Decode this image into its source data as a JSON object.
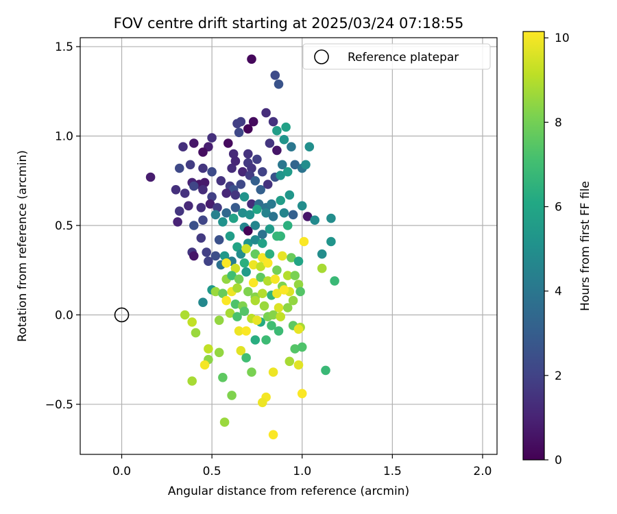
{
  "chart_data": {
    "type": "scatter",
    "title": "FOV centre drift starting at 2025/03/24 07:18:55",
    "xlabel": "Angular distance from reference (arcmin)",
    "ylabel": "Rotation from reference (arcmin)",
    "xlim": [
      -0.23,
      2.08
    ],
    "ylim": [
      -0.78,
      1.55
    ],
    "xticks": [
      "0.0",
      "0.5",
      "1.0",
      "1.5",
      "2.0"
    ],
    "xtick_values": [
      0,
      0.5,
      1.0,
      1.5,
      2.0
    ],
    "yticks": [
      "−0.5",
      "0.0",
      "0.5",
      "1.0",
      "1.5"
    ],
    "ytick_values": [
      -0.5,
      0,
      0.5,
      1.0,
      1.5
    ],
    "grid": true,
    "legend": {
      "position": "top-right",
      "label": "Reference platepar"
    },
    "reference_point": {
      "x": 0.0,
      "y": 0.0
    },
    "colorbar": {
      "label": "Hours from first FF file",
      "colormap": "viridis",
      "range": [
        0,
        10.15
      ],
      "ticks": [
        "0",
        "2",
        "4",
        "6",
        "8",
        "10"
      ],
      "tick_values": [
        0,
        2,
        4,
        6,
        8,
        10
      ]
    },
    "points": [
      [
        0.72,
        1.43,
        0.2
      ],
      [
        0.85,
        1.34,
        2.3
      ],
      [
        0.87,
        1.29,
        2.6
      ],
      [
        0.8,
        1.13,
        1.3
      ],
      [
        0.84,
        1.08,
        1.5
      ],
      [
        0.66,
        1.08,
        1.8
      ],
      [
        0.64,
        1.07,
        1.9
      ],
      [
        0.73,
        1.08,
        0.3
      ],
      [
        0.7,
        1.04,
        0.1
      ],
      [
        0.65,
        1.02,
        2.2
      ],
      [
        0.5,
        0.99,
        1.4
      ],
      [
        0.59,
        0.96,
        0.3
      ],
      [
        0.4,
        0.96,
        0.6
      ],
      [
        0.34,
        0.94,
        1.4
      ],
      [
        0.48,
        0.94,
        0.9
      ],
      [
        0.45,
        0.91,
        0.4
      ],
      [
        0.62,
        0.9,
        1.2
      ],
      [
        0.7,
        0.9,
        1.5
      ],
      [
        0.75,
        0.87,
        1.9
      ],
      [
        0.82,
        0.96,
        1.6
      ],
      [
        0.86,
        0.92,
        0.6
      ],
      [
        0.94,
        0.94,
        4.0
      ],
      [
        1.04,
        0.94,
        5.0
      ],
      [
        0.9,
        0.98,
        5.2
      ],
      [
        0.91,
        1.05,
        5.8
      ],
      [
        0.86,
        1.03,
        5.6
      ],
      [
        0.89,
        0.84,
        4.0
      ],
      [
        0.96,
        0.84,
        3.3
      ],
      [
        1.0,
        0.82,
        3.9
      ],
      [
        1.02,
        0.84,
        4.9
      ],
      [
        0.32,
        0.82,
        2.2
      ],
      [
        0.38,
        0.84,
        1.8
      ],
      [
        0.45,
        0.82,
        1.6
      ],
      [
        0.5,
        0.8,
        2.3
      ],
      [
        0.61,
        0.82,
        1.3
      ],
      [
        0.63,
        0.86,
        1.1
      ],
      [
        0.7,
        0.85,
        1.7
      ],
      [
        0.72,
        0.82,
        1.6
      ],
      [
        0.78,
        0.8,
        2.0
      ],
      [
        0.16,
        0.77,
        0.8
      ],
      [
        0.39,
        0.74,
        1.0
      ],
      [
        0.43,
        0.73,
        0.6
      ],
      [
        0.46,
        0.74,
        0.7
      ],
      [
        0.55,
        0.75,
        1.5
      ],
      [
        0.6,
        0.72,
        1.8
      ],
      [
        0.62,
        0.7,
        2.5
      ],
      [
        0.66,
        0.73,
        2.2
      ],
      [
        0.67,
        0.8,
        1.1
      ],
      [
        0.71,
        0.78,
        1.8
      ],
      [
        0.74,
        0.75,
        3.1
      ],
      [
        0.77,
        0.7,
        3.1
      ],
      [
        0.81,
        0.73,
        1.5
      ],
      [
        0.85,
        0.77,
        2.6
      ],
      [
        0.88,
        0.78,
        5.2
      ],
      [
        0.92,
        0.8,
        5.5
      ],
      [
        0.3,
        0.7,
        1.4
      ],
      [
        0.35,
        0.68,
        1.5
      ],
      [
        0.4,
        0.72,
        2.1
      ],
      [
        0.45,
        0.7,
        1.3
      ],
      [
        0.5,
        0.66,
        1.9
      ],
      [
        0.58,
        0.68,
        1.1
      ],
      [
        0.63,
        0.67,
        1.6
      ],
      [
        0.68,
        0.66,
        5.2
      ],
      [
        0.72,
        0.62,
        1.3
      ],
      [
        0.76,
        0.62,
        3.6
      ],
      [
        0.8,
        0.6,
        3.9
      ],
      [
        0.83,
        0.62,
        4.1
      ],
      [
        0.88,
        0.64,
        5.6
      ],
      [
        0.93,
        0.67,
        5.3
      ],
      [
        0.32,
        0.58,
        1.6
      ],
      [
        0.37,
        0.61,
        1.2
      ],
      [
        0.44,
        0.6,
        1.4
      ],
      [
        0.49,
        0.62,
        0.8
      ],
      [
        0.53,
        0.6,
        1.7
      ],
      [
        0.58,
        0.57,
        3.4
      ],
      [
        0.63,
        0.6,
        2.9
      ],
      [
        0.67,
        0.57,
        4.9
      ],
      [
        0.71,
        0.56,
        5.1
      ],
      [
        0.75,
        0.59,
        6.0
      ],
      [
        0.8,
        0.57,
        4.5
      ],
      [
        0.84,
        0.55,
        3.9
      ],
      [
        0.9,
        0.57,
        4.6
      ],
      [
        0.95,
        0.56,
        3.1
      ],
      [
        1.0,
        0.61,
        4.9
      ],
      [
        1.03,
        0.55,
        0.6
      ],
      [
        1.07,
        0.53,
        4.8
      ],
      [
        1.16,
        0.54,
        4.9
      ],
      [
        0.31,
        0.52,
        1.0
      ],
      [
        0.4,
        0.5,
        2.5
      ],
      [
        0.45,
        0.53,
        2.1
      ],
      [
        0.52,
        0.56,
        4.4
      ],
      [
        0.56,
        0.52,
        5.1
      ],
      [
        0.62,
        0.54,
        5.8
      ],
      [
        0.68,
        0.49,
        4.6
      ],
      [
        0.7,
        0.47,
        0.1
      ],
      [
        0.74,
        0.5,
        4.6
      ],
      [
        0.78,
        0.45,
        3.8
      ],
      [
        0.82,
        0.48,
        5.5
      ],
      [
        0.88,
        0.44,
        6.6
      ],
      [
        0.92,
        0.5,
        6.4
      ],
      [
        0.44,
        0.43,
        1.7
      ],
      [
        0.54,
        0.42,
        2.5
      ],
      [
        0.6,
        0.44,
        5.6
      ],
      [
        0.64,
        0.38,
        5.9
      ],
      [
        0.7,
        0.4,
        5.2
      ],
      [
        0.74,
        0.42,
        4.8
      ],
      [
        0.78,
        0.4,
        5.8
      ],
      [
        0.86,
        0.44,
        6.7
      ],
      [
        1.01,
        0.41,
        10.1
      ],
      [
        1.16,
        0.41,
        5.2
      ],
      [
        0.39,
        0.35,
        1.6
      ],
      [
        0.4,
        0.33,
        0.6
      ],
      [
        0.47,
        0.35,
        1.9
      ],
      [
        0.52,
        0.33,
        2.4
      ],
      [
        0.57,
        0.33,
        5.4
      ],
      [
        0.61,
        0.3,
        4.3
      ],
      [
        0.66,
        0.34,
        4.9
      ],
      [
        0.69,
        0.37,
        9.4
      ],
      [
        0.74,
        0.34,
        7.7
      ],
      [
        0.78,
        0.32,
        10.0
      ],
      [
        0.82,
        0.34,
        6.4
      ],
      [
        0.89,
        0.33,
        9.8
      ],
      [
        0.94,
        0.32,
        7.8
      ],
      [
        0.98,
        0.3,
        5.9
      ],
      [
        1.11,
        0.34,
        4.9
      ],
      [
        0.48,
        0.3,
        2.0
      ],
      [
        0.55,
        0.28,
        3.8
      ],
      [
        0.58,
        0.29,
        10.1
      ],
      [
        0.63,
        0.26,
        9.4
      ],
      [
        0.68,
        0.29,
        6.4
      ],
      [
        0.73,
        0.28,
        9.9
      ],
      [
        0.77,
        0.27,
        9.2
      ],
      [
        0.81,
        0.29,
        10.1
      ],
      [
        0.86,
        0.25,
        8.0
      ],
      [
        0.92,
        0.22,
        9.0
      ],
      [
        0.96,
        0.22,
        8.1
      ],
      [
        1.11,
        0.26,
        8.8
      ],
      [
        0.58,
        0.2,
        8.5
      ],
      [
        0.61,
        0.22,
        7.0
      ],
      [
        0.65,
        0.2,
        8.0
      ],
      [
        0.69,
        0.24,
        5.5
      ],
      [
        0.73,
        0.18,
        10.1
      ],
      [
        0.77,
        0.21,
        7.6
      ],
      [
        0.81,
        0.19,
        9.0
      ],
      [
        0.85,
        0.2,
        10.0
      ],
      [
        0.89,
        0.16,
        8.2
      ],
      [
        0.93,
        0.13,
        9.6
      ],
      [
        0.98,
        0.17,
        8.5
      ],
      [
        1.18,
        0.19,
        6.8
      ],
      [
        0.5,
        0.14,
        5.4
      ],
      [
        0.52,
        0.13,
        8.6
      ],
      [
        0.56,
        0.12,
        7.8
      ],
      [
        0.61,
        0.13,
        9.9
      ],
      [
        0.64,
        0.15,
        8.8
      ],
      [
        0.7,
        0.13,
        8.2
      ],
      [
        0.74,
        0.1,
        8.3
      ],
      [
        0.78,
        0.12,
        9.0
      ],
      [
        0.83,
        0.11,
        6.6
      ],
      [
        0.86,
        0.12,
        9.9
      ],
      [
        0.9,
        0.14,
        10.1
      ],
      [
        0.95,
        0.08,
        8.5
      ],
      [
        0.99,
        0.13,
        7.4
      ],
      [
        0.45,
        0.07,
        4.7
      ],
      [
        0.58,
        0.08,
        10.1
      ],
      [
        0.63,
        0.06,
        7.3
      ],
      [
        0.67,
        0.05,
        8.2
      ],
      [
        0.74,
        0.08,
        8.9
      ],
      [
        0.79,
        0.05,
        8.6
      ],
      [
        0.87,
        0.04,
        9.6
      ],
      [
        0.92,
        0.04,
        8.4
      ],
      [
        0.35,
        0.0,
        8.9
      ],
      [
        0.6,
        0.01,
        8.8
      ],
      [
        0.64,
        -0.01,
        7.2
      ],
      [
        0.68,
        0.02,
        7.4
      ],
      [
        0.72,
        -0.02,
        9.1
      ],
      [
        0.77,
        -0.04,
        6.2
      ],
      [
        0.81,
        -0.01,
        8.1
      ],
      [
        0.84,
        0.0,
        8.3
      ],
      [
        0.88,
        -0.01,
        9.2
      ],
      [
        0.95,
        -0.06,
        7.6
      ],
      [
        0.99,
        -0.07,
        8.8
      ],
      [
        0.39,
        -0.04,
        9.2
      ],
      [
        0.54,
        -0.03,
        8.5
      ],
      [
        0.75,
        -0.03,
        9.8
      ],
      [
        0.83,
        -0.06,
        7.0
      ],
      [
        0.41,
        -0.1,
        8.6
      ],
      [
        0.65,
        -0.09,
        9.9
      ],
      [
        0.69,
        -0.09,
        10.1
      ],
      [
        0.74,
        -0.14,
        6.3
      ],
      [
        0.8,
        -0.14,
        6.9
      ],
      [
        0.87,
        -0.09,
        6.9
      ],
      [
        0.98,
        -0.08,
        9.8
      ],
      [
        0.48,
        -0.19,
        9.2
      ],
      [
        0.54,
        -0.21,
        8.5
      ],
      [
        0.66,
        -0.2,
        9.7
      ],
      [
        0.96,
        -0.19,
        7.4
      ],
      [
        1.0,
        -0.18,
        7.3
      ],
      [
        0.48,
        -0.25,
        8.4
      ],
      [
        0.46,
        -0.28,
        10.0
      ],
      [
        0.69,
        -0.24,
        7.0
      ],
      [
        0.93,
        -0.26,
        8.8
      ],
      [
        0.98,
        -0.28,
        9.7
      ],
      [
        1.13,
        -0.31,
        6.8
      ],
      [
        0.72,
        -0.32,
        8.1
      ],
      [
        0.84,
        -0.32,
        9.9
      ],
      [
        0.56,
        -0.35,
        7.6
      ],
      [
        0.39,
        -0.37,
        8.8
      ],
      [
        0.61,
        -0.45,
        8.2
      ],
      [
        0.8,
        -0.46,
        10.0
      ],
      [
        0.78,
        -0.49,
        9.9
      ],
      [
        1.0,
        -0.44,
        10.1
      ],
      [
        0.57,
        -0.6,
        8.6
      ],
      [
        0.84,
        -0.67,
        10.1
      ]
    ]
  }
}
